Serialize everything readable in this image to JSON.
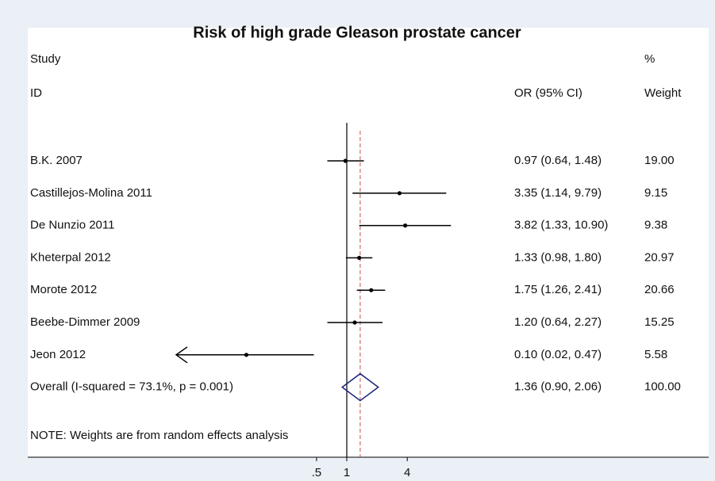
{
  "chart_data": {
    "type": "forest",
    "title": "Risk of high grade Gleason prostate cancer",
    "headers": {
      "study": "Study",
      "id": "ID",
      "ci": "OR (95% CI)",
      "pct": "%",
      "weight": "Weight"
    },
    "studies": [
      {
        "name": "B.K. 2007",
        "or": 0.97,
        "lower": 0.64,
        "upper": 1.48,
        "ci_label": "0.97 (0.64, 1.48)",
        "weight": "19.00"
      },
      {
        "name": "Castillejos-Molina 2011",
        "or": 3.35,
        "lower": 1.14,
        "upper": 9.79,
        "ci_label": "3.35 (1.14, 9.79)",
        "weight": "9.15"
      },
      {
        "name": "De Nunzio 2011",
        "or": 3.82,
        "lower": 1.33,
        "upper": 10.9,
        "ci_label": "3.82 (1.33, 10.90)",
        "weight": "9.38"
      },
      {
        "name": "Kheterpal 2012",
        "or": 1.33,
        "lower": 0.98,
        "upper": 1.8,
        "ci_label": "1.33 (0.98, 1.80)",
        "weight": "20.97"
      },
      {
        "name": "Morote 2012",
        "or": 1.75,
        "lower": 1.26,
        "upper": 2.41,
        "ci_label": "1.75 (1.26, 2.41)",
        "weight": "20.66"
      },
      {
        "name": "Beebe-Dimmer 2009",
        "or": 1.2,
        "lower": 0.64,
        "upper": 2.27,
        "ci_label": "1.20 (0.64, 2.27)",
        "weight": "15.25"
      },
      {
        "name": "Jeon 2012",
        "or": 0.1,
        "lower": 0.02,
        "upper": 0.47,
        "ci_label": "0.10 (0.02, 0.47)",
        "weight": "5.58"
      }
    ],
    "overall": {
      "name": "Overall  (I-squared = 73.1%, p = 0.001)",
      "or": 1.36,
      "lower": 0.9,
      "upper": 2.06,
      "ci_label": "1.36 (0.90, 2.06)",
      "weight": "100.00"
    },
    "note": "NOTE: Weights are from random effects analysis",
    "xlim": [
      0.02,
      50
    ],
    "xticks": [
      {
        "value": 0.5,
        "label": ".5"
      },
      1,
      4
    ],
    "log_scale": true,
    "null_line": 1,
    "color": "#000000",
    "diamond_color": "#1a237e",
    "overall_line_color": "#c0504d"
  }
}
